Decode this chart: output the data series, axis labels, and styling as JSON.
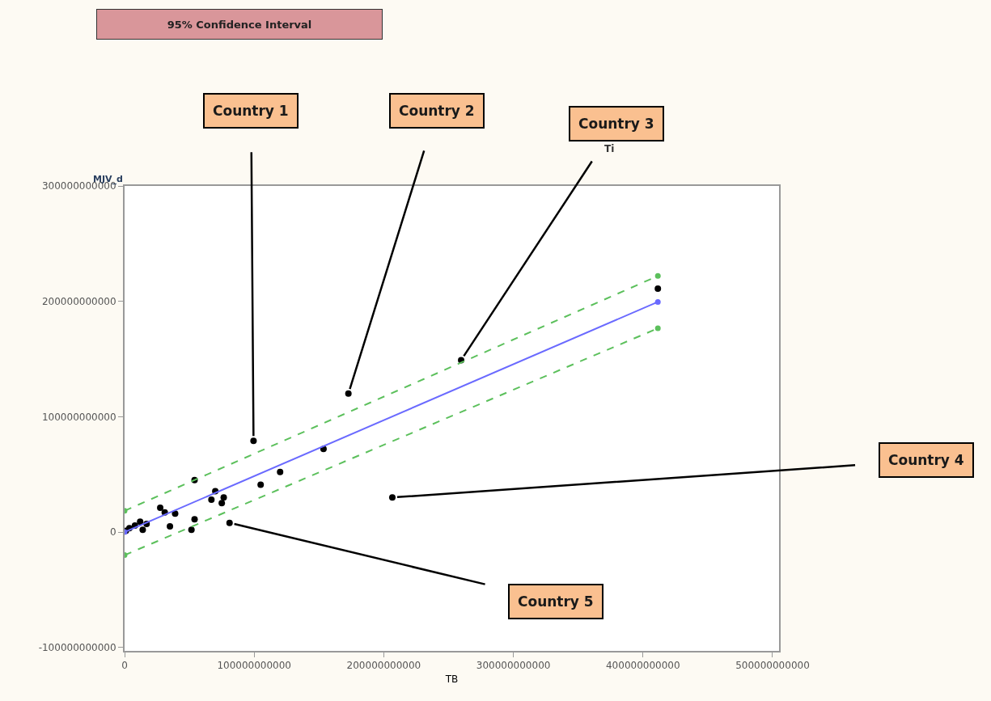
{
  "chart_data": {
    "type": "scatter",
    "xlabel": "TB",
    "ylabel": "MJV_d",
    "xlim": [
      0,
      505000000000
    ],
    "ylim": [
      -103000000000,
      300000000000
    ],
    "xticks": [
      0,
      100000000000,
      200000000000,
      300000000000,
      400000000000,
      500000000000
    ],
    "yticks": [
      -100000000000,
      0,
      100000000000,
      200000000000,
      300000000000
    ],
    "series": [
      {
        "color": "#000000",
        "marker": "circle",
        "x": [
          99500000000,
          153500000000,
          120000000000,
          105000000000,
          54000000000,
          70000000000,
          67000000000,
          76500000000,
          75000000000,
          81000000000,
          54000000000,
          51600000000,
          35000000000,
          39000000000,
          27500000000,
          31000000000,
          12000000000,
          14000000000,
          8000000000,
          3700000000,
          1000000000,
          17000000000,
          172700000000,
          259700000000,
          206600000000,
          411500000000
        ],
        "values": [
          79000000000,
          72000000000,
          52000000000,
          41000000000,
          45000000000,
          35500000000,
          28000000000,
          30000000000,
          25000000000,
          8000000000,
          11000000000,
          2000000000,
          5000000000,
          16000000000,
          21000000000,
          17000000000,
          9000000000,
          2000000000,
          5600000000,
          3300000000,
          1000000000,
          7000000000,
          120000000000,
          149000000000,
          30000000000,
          211000000000
        ]
      },
      {
        "type": "line",
        "color": "#6a6aff",
        "line_style": "solid",
        "marker": "circle",
        "x": [
          0,
          411500000000
        ],
        "values": [
          0,
          199500000000
        ]
      },
      {
        "type": "line",
        "color": "#5cc05c",
        "line_style": "dashed",
        "marker": "circle",
        "x": [
          0,
          411500000000
        ],
        "values": [
          18400000000,
          222000000000
        ]
      },
      {
        "type": "line",
        "color": "#5cc05c",
        "line_style": "dashed",
        "marker": "circle",
        "x": [
          0,
          411500000000
        ],
        "values": [
          -20000000000,
          176600000000
        ]
      }
    ],
    "annotations": [
      "95% Confidence Interval",
      "Ti",
      {
        "text": "Country 1",
        "x": 99500000000,
        "y": 79000000000
      },
      {
        "text": "Country 2",
        "x": 172700000000,
        "y": 120000000000
      },
      {
        "text": "Country 3",
        "x": 259700000000,
        "y": 149000000000
      },
      {
        "text": "Country 4",
        "x": 206600000000,
        "y": 30000000000
      },
      {
        "text": "Country 5",
        "x": 81000000000,
        "y": 8000000000
      }
    ]
  }
}
